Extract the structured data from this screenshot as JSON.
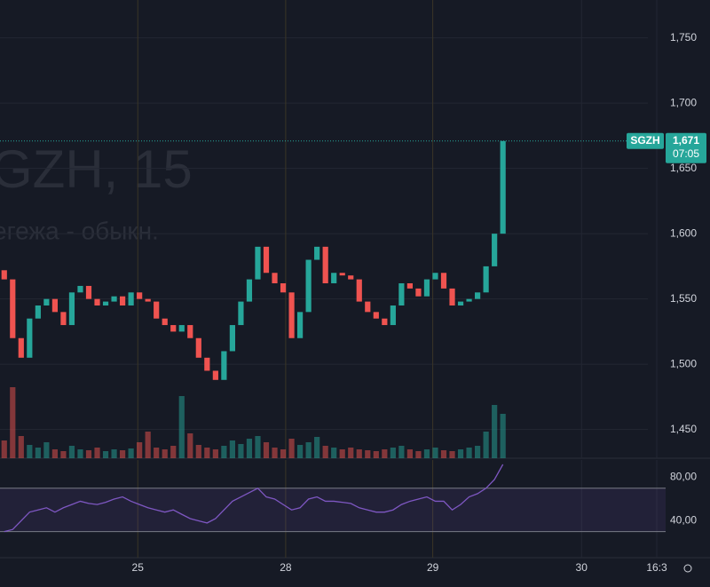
{
  "chart_data": {
    "type": "candlestick",
    "symbol": "SGZH",
    "watermark": "GZH, 15",
    "watermark_subtitle": "егежа - обыкн.",
    "last_price": 1671,
    "last_price_label": "1,671",
    "countdown": "07:05",
    "up_color": "#26a69a",
    "down_color": "#ef5350",
    "open": [
      1572,
      1565,
      1520,
      1505,
      1535,
      1545,
      1550,
      1540,
      1530,
      1555,
      1560,
      1550,
      1545,
      1548,
      1552,
      1545,
      1555,
      1550,
      1548,
      1535,
      1530,
      1525,
      1530,
      1520,
      1505,
      1495,
      1488,
      1510,
      1530,
      1548,
      1565,
      1590,
      1570,
      1562,
      1555,
      1520,
      1540,
      1580,
      1590,
      1562,
      1570,
      1568,
      1565,
      1548,
      1540,
      1535,
      1530,
      1545,
      1562,
      1558,
      1552,
      1565,
      1570,
      1558,
      1545,
      1548,
      1550,
      1555,
      1575,
      1600
    ],
    "close": [
      1565,
      1520,
      1505,
      1535,
      1545,
      1550,
      1540,
      1530,
      1555,
      1560,
      1550,
      1545,
      1548,
      1552,
      1545,
      1555,
      1550,
      1548,
      1535,
      1530,
      1525,
      1530,
      1520,
      1505,
      1495,
      1488,
      1510,
      1530,
      1548,
      1565,
      1590,
      1570,
      1562,
      1555,
      1520,
      1540,
      1580,
      1590,
      1562,
      1570,
      1568,
      1565,
      1548,
      1540,
      1535,
      1530,
      1545,
      1562,
      1558,
      1552,
      1565,
      1570,
      1558,
      1545,
      1548,
      1550,
      1555,
      1575,
      1600,
      1671
    ],
    "volume": [
      20,
      80,
      25,
      15,
      12,
      18,
      10,
      8,
      14,
      10,
      9,
      12,
      8,
      10,
      9,
      11,
      18,
      30,
      12,
      10,
      14,
      70,
      28,
      15,
      12,
      10,
      14,
      20,
      16,
      22,
      25,
      18,
      12,
      10,
      22,
      15,
      18,
      24,
      14,
      12,
      10,
      12,
      10,
      9,
      8,
      10,
      12,
      14,
      10,
      8,
      10,
      12,
      9,
      8,
      10,
      12,
      14,
      30,
      60,
      50
    ],
    "rsi": [
      30,
      32,
      40,
      48,
      50,
      52,
      48,
      52,
      55,
      58,
      56,
      55,
      57,
      60,
      62,
      58,
      55,
      52,
      50,
      48,
      50,
      46,
      42,
      40,
      38,
      42,
      50,
      58,
      62,
      66,
      70,
      62,
      60,
      55,
      50,
      52,
      60,
      62,
      58,
      58,
      57,
      56,
      52,
      50,
      48,
      48,
      50,
      55,
      58,
      60,
      62,
      58,
      58,
      50,
      55,
      62,
      65,
      70,
      78,
      92
    ],
    "rsi_color": "#7e57c2",
    "rsi_bands": [
      30,
      70
    ],
    "xlim": [
      0,
      84
    ],
    "xticks": [
      {
        "value": 16.3,
        "label": "25"
      },
      {
        "value": 33.8,
        "label": "28"
      },
      {
        "value": 51.2,
        "label": "29"
      },
      {
        "value": 68.8,
        "label": "30"
      },
      {
        "value": 77.7,
        "label": "16:3"
      }
    ],
    "ylim": [
      1428,
      1779
    ],
    "yticks": [
      {
        "value": 1450,
        "label": "1,450"
      },
      {
        "value": 1500,
        "label": "1,500"
      },
      {
        "value": 1550,
        "label": "1,550"
      },
      {
        "value": 1600,
        "label": "1,600"
      },
      {
        "value": 1650,
        "label": "1,650"
      },
      {
        "value": 1700,
        "label": "1,700"
      },
      {
        "value": 1750,
        "label": "1,750"
      }
    ],
    "volume_ylim": [
      0,
      100
    ],
    "rsi_ylim": [
      6,
      96
    ],
    "rsi_yticks": [
      {
        "value": 40,
        "label": "40,00"
      },
      {
        "value": 80,
        "label": "80,00"
      }
    ],
    "grid": true
  }
}
